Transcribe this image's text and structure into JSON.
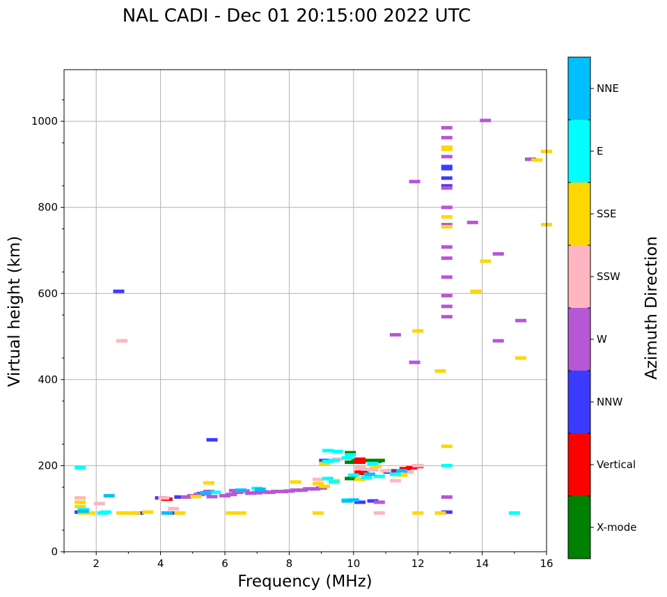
{
  "chart_data": {
    "type": "scatter",
    "title": "NAL CADI - Dec 01 20:15:00 2022 UTC",
    "xlabel": "Frequency (MHz)",
    "ylabel": "Virtual height (km)",
    "xlim": [
      1,
      16
    ],
    "ylim": [
      0,
      1120
    ],
    "xticks": [
      "2",
      "4",
      "6",
      "8",
      "10",
      "12",
      "14",
      "16"
    ],
    "xtick_values": [
      2,
      4,
      6,
      8,
      10,
      12,
      14,
      16
    ],
    "yticks": [
      "0",
      "200",
      "400",
      "600",
      "800",
      "1000"
    ],
    "ytick_values": [
      0,
      200,
      400,
      600,
      800,
      1000
    ],
    "grid": true,
    "colorbar": {
      "label": "Azimuth Direction",
      "categories": [
        {
          "name": "X-mode",
          "color": "#008000"
        },
        {
          "name": "Vertical",
          "color": "#ff0000"
        },
        {
          "name": "NNW",
          "color": "#3b3bff"
        },
        {
          "name": "W",
          "color": "#b657d6"
        },
        {
          "name": "SSW",
          "color": "#ffb6c1"
        },
        {
          "name": "SSE",
          "color": "#ffd700"
        },
        {
          "name": "E",
          "color": "#00ffff"
        },
        {
          "name": "NNE",
          "color": "#00bfff"
        }
      ]
    },
    "series": [
      {
        "name": "X-mode",
        "points": [
          [
            9.9,
            230
          ],
          [
            9.9,
            208
          ],
          [
            10.1,
            212
          ],
          [
            10.5,
            212
          ],
          [
            10.6,
            205
          ],
          [
            10.7,
            210
          ],
          [
            10.8,
            212
          ],
          [
            10.3,
            185
          ],
          [
            9.9,
            170
          ]
        ]
      },
      {
        "name": "Vertical",
        "points": [
          [
            10.2,
            215
          ],
          [
            10.2,
            208
          ],
          [
            10.2,
            185
          ],
          [
            10.3,
            182
          ],
          [
            11.2,
            188
          ],
          [
            11.6,
            193
          ],
          [
            11.8,
            195
          ],
          [
            12.0,
            198
          ],
          [
            4.2,
            122
          ]
        ]
      },
      {
        "name": "NNW",
        "points": [
          [
            2.7,
            605
          ],
          [
            5.6,
            260
          ],
          [
            12.9,
            895
          ],
          [
            12.9,
            890
          ],
          [
            12.9,
            868
          ],
          [
            12.9,
            850
          ],
          [
            10.2,
            115
          ],
          [
            10.6,
            118
          ],
          [
            12.9,
            92
          ],
          [
            4.0,
            125
          ],
          [
            4.6,
            127
          ],
          [
            1.5,
            92
          ],
          [
            3.3,
            90
          ],
          [
            4.4,
            90
          ],
          [
            9.1,
            212
          ],
          [
            11.1,
            185
          ],
          [
            5.3,
            135
          ]
        ]
      },
      {
        "name": "W",
        "points": [
          [
            12.9,
            985
          ],
          [
            12.9,
            962
          ],
          [
            12.9,
            918
          ],
          [
            12.9,
            845
          ],
          [
            12.9,
            800
          ],
          [
            12.9,
            760
          ],
          [
            12.9,
            708
          ],
          [
            12.9,
            682
          ],
          [
            12.9,
            638
          ],
          [
            12.9,
            595
          ],
          [
            12.9,
            570
          ],
          [
            12.9,
            546
          ],
          [
            12.9,
            127
          ],
          [
            13.7,
            765
          ],
          [
            14.1,
            1002
          ],
          [
            14.5,
            692
          ],
          [
            15.5,
            912
          ],
          [
            11.3,
            504
          ],
          [
            11.9,
            440
          ],
          [
            11.9,
            860
          ],
          [
            14.5,
            490
          ],
          [
            15.2,
            537
          ],
          [
            4.8,
            127
          ],
          [
            5.0,
            130
          ],
          [
            5.2,
            133
          ],
          [
            5.4,
            135
          ],
          [
            5.6,
            128
          ],
          [
            6.0,
            130
          ],
          [
            6.2,
            133
          ],
          [
            6.4,
            138
          ],
          [
            6.6,
            141
          ],
          [
            6.8,
            136
          ],
          [
            7.0,
            137
          ],
          [
            7.2,
            139
          ],
          [
            7.4,
            138
          ],
          [
            7.6,
            140
          ],
          [
            7.8,
            140
          ],
          [
            8.0,
            141
          ],
          [
            8.2,
            143
          ],
          [
            8.4,
            143
          ],
          [
            8.6,
            146
          ],
          [
            8.8,
            146
          ],
          [
            9.0,
            148
          ],
          [
            5.5,
            140
          ],
          [
            6.3,
            142
          ],
          [
            7.1,
            140
          ],
          [
            10.8,
            115
          ]
        ]
      },
      {
        "name": "SSW",
        "points": [
          [
            2.1,
            112
          ],
          [
            2.8,
            490
          ],
          [
            8.9,
            168
          ],
          [
            9.2,
            170
          ],
          [
            9.4,
            163
          ],
          [
            9.5,
            215
          ],
          [
            10.2,
            195
          ],
          [
            10.4,
            192
          ],
          [
            10.6,
            190
          ],
          [
            11.3,
            165
          ],
          [
            11.0,
            188
          ],
          [
            11.7,
            185
          ],
          [
            12.0,
            200
          ],
          [
            10.8,
            90
          ],
          [
            4.4,
            100
          ],
          [
            1.5,
            125
          ],
          [
            4.1,
            125
          ]
        ]
      },
      {
        "name": "SSE",
        "points": [
          [
            12.9,
            940
          ],
          [
            12.9,
            935
          ],
          [
            12.9,
            778
          ],
          [
            12.9,
            755
          ],
          [
            12.9,
            245
          ],
          [
            12.7,
            420
          ],
          [
            12.0,
            513
          ],
          [
            13.8,
            605
          ],
          [
            14.1,
            675
          ],
          [
            15.2,
            450
          ],
          [
            15.7,
            910
          ],
          [
            16.0,
            930
          ],
          [
            16.0,
            760
          ],
          [
            1.6,
            90
          ],
          [
            1.8,
            90
          ],
          [
            2.8,
            90
          ],
          [
            3.0,
            90
          ],
          [
            3.2,
            90
          ],
          [
            3.6,
            92
          ],
          [
            4.6,
            90
          ],
          [
            5.5,
            160
          ],
          [
            6.2,
            90
          ],
          [
            6.5,
            90
          ],
          [
            8.2,
            162
          ],
          [
            8.9,
            90
          ],
          [
            8.9,
            158
          ],
          [
            9.1,
            152
          ],
          [
            9.4,
            165
          ],
          [
            10.2,
            168
          ],
          [
            10.7,
            198
          ],
          [
            11.5,
            178
          ],
          [
            12.0,
            90
          ],
          [
            12.7,
            90
          ],
          [
            5.1,
            128
          ],
          [
            1.5,
            115
          ],
          [
            1.5,
            105
          ],
          [
            9.1,
            205
          ]
        ]
      },
      {
        "name": "E",
        "points": [
          [
            12.9,
            200
          ],
          [
            1.5,
            195
          ],
          [
            2.3,
            92
          ],
          [
            2.2,
            90
          ],
          [
            9.2,
            235
          ],
          [
            9.5,
            233
          ],
          [
            9.9,
            225
          ],
          [
            9.2,
            210
          ],
          [
            9.4,
            212
          ],
          [
            9.8,
            218
          ],
          [
            10.0,
            178
          ],
          [
            10.4,
            172
          ],
          [
            10.8,
            175
          ],
          [
            11.3,
            180
          ],
          [
            9.2,
            170
          ],
          [
            9.4,
            162
          ],
          [
            10.6,
            205
          ],
          [
            15.0,
            90
          ],
          [
            9.8,
            120
          ],
          [
            7.0,
            147
          ],
          [
            5.7,
            138
          ],
          [
            1.6,
            98
          ]
        ]
      },
      {
        "name": "NNE",
        "points": [
          [
            2.4,
            130
          ],
          [
            1.6,
            94
          ],
          [
            4.2,
            90
          ],
          [
            9.8,
            118
          ],
          [
            10.0,
            120
          ],
          [
            7.1,
            145
          ],
          [
            5.4,
            137
          ],
          [
            10.5,
            180
          ],
          [
            11.5,
            188
          ],
          [
            6.5,
            143
          ]
        ]
      }
    ]
  }
}
